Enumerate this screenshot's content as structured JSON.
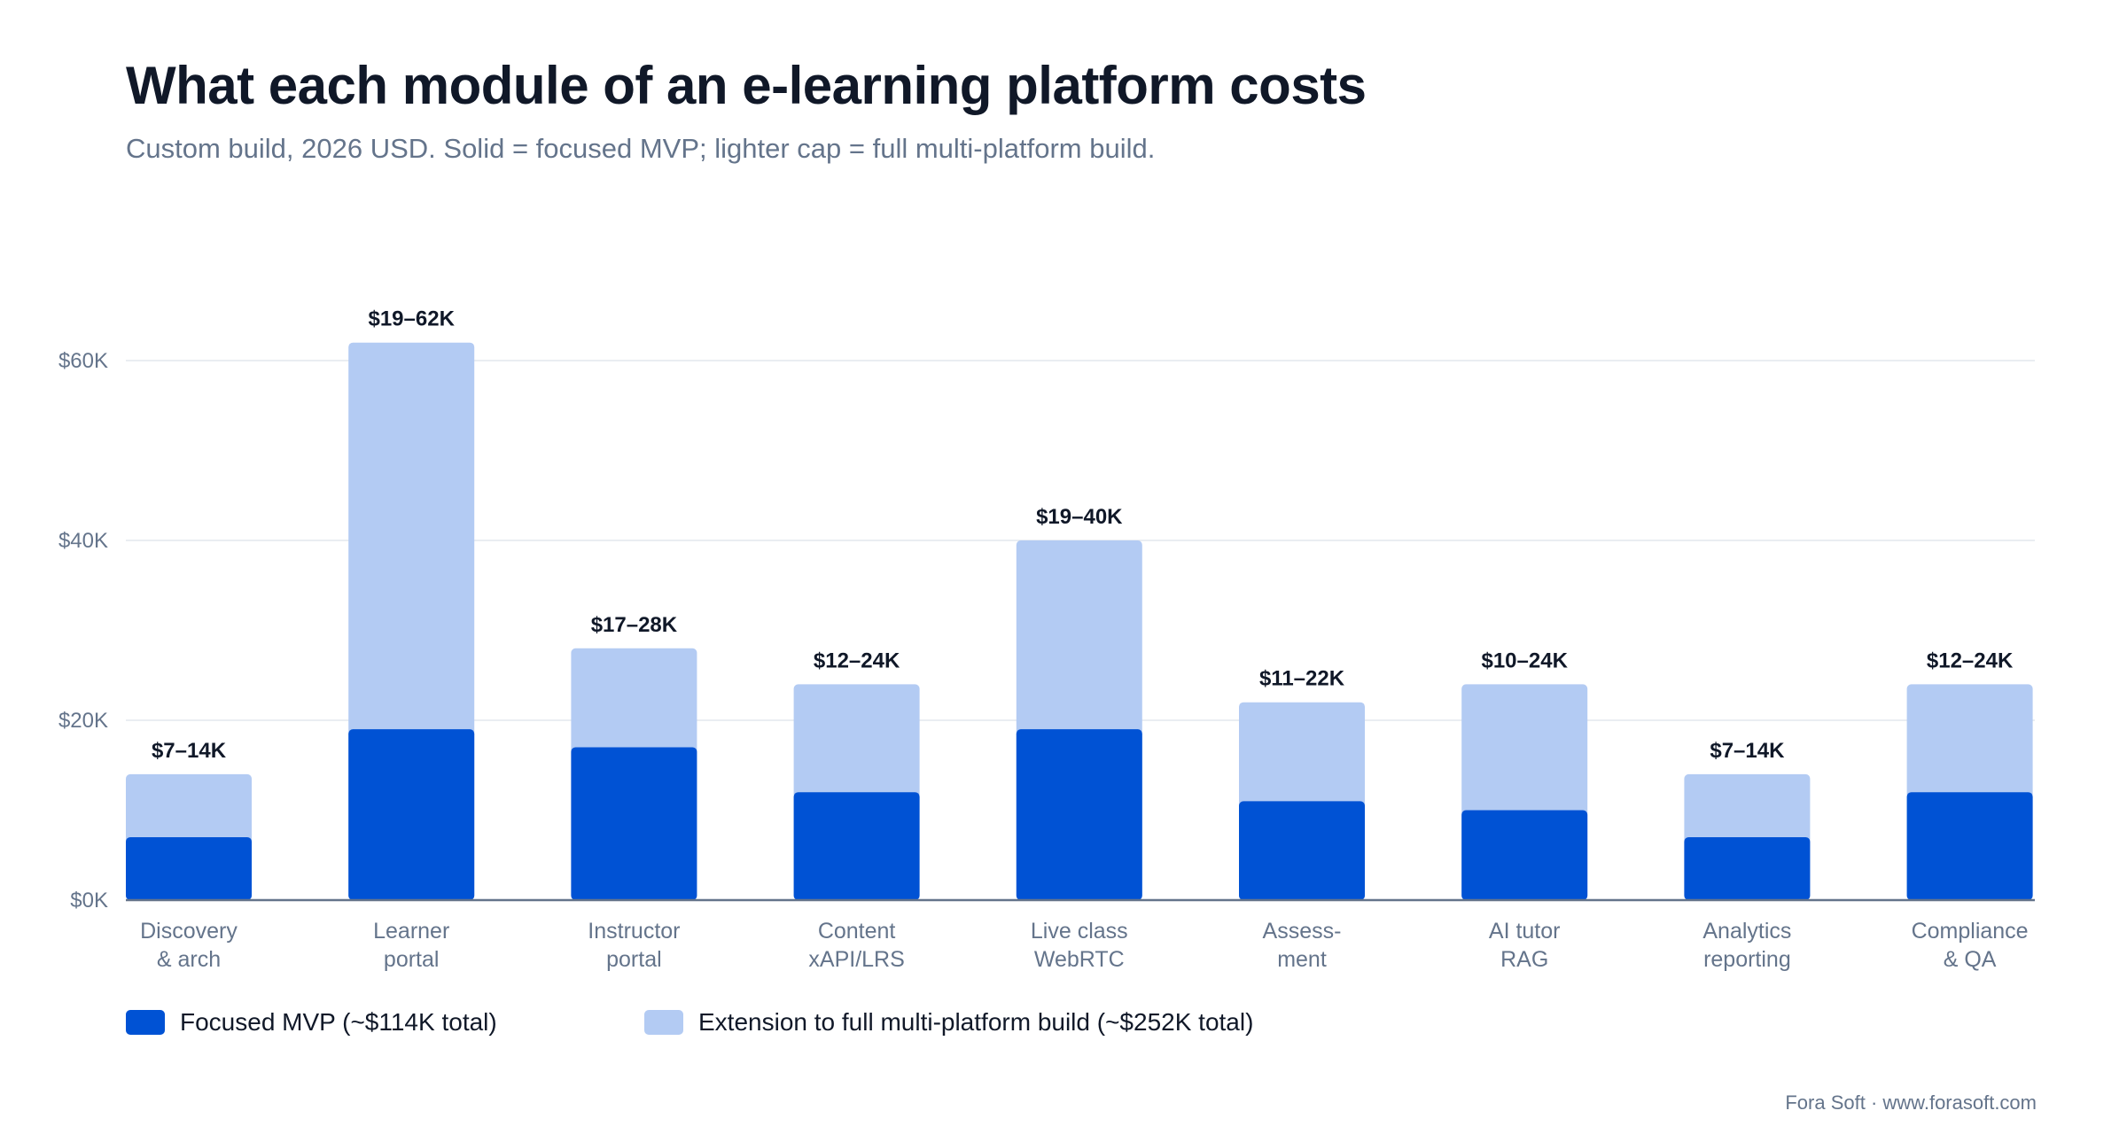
{
  "header": {
    "title": "What each module of an e-learning platform costs",
    "subtitle": "Custom build, 2026 USD. Solid = focused MVP; lighter cap = full multi-platform build."
  },
  "chart_data": {
    "type": "bar",
    "stacked": true,
    "categories": [
      [
        "Discovery",
        "& arch"
      ],
      [
        "Learner",
        "portal"
      ],
      [
        "Instructor",
        "portal"
      ],
      [
        "Content",
        "xAPI/LRS"
      ],
      [
        "Live class",
        "WebRTC"
      ],
      [
        "Assess-",
        "ment"
      ],
      [
        "AI tutor",
        "RAG"
      ],
      [
        "Analytics",
        "reporting"
      ],
      [
        "Compliance",
        "& QA"
      ]
    ],
    "series": [
      {
        "name": "Focused MVP (~$114K total)",
        "color": "#0052d4",
        "values": [
          7,
          19,
          17,
          12,
          19,
          11,
          10,
          7,
          12
        ]
      },
      {
        "name": "Extension to full multi-platform build (~$252K total)",
        "color": "#b3cbf3",
        "values": [
          7,
          43,
          11,
          12,
          21,
          11,
          14,
          7,
          12
        ]
      }
    ],
    "data_labels": [
      "$7–14K",
      "$19–62K",
      "$17–28K",
      "$12–24K",
      "$19–40K",
      "$11–22K",
      "$10–24K",
      "$7–14K",
      "$12–24K"
    ],
    "y_ticks": [
      0,
      20,
      40,
      60
    ],
    "y_tick_labels": [
      "$0K",
      "$20K",
      "$40K",
      "$60K"
    ],
    "ylim": [
      0,
      60
    ],
    "unit": "thousand USD",
    "grid": true,
    "legend_position": "bottom-left"
  },
  "legend": {
    "items": [
      {
        "label": "Focused MVP (~$114K total)",
        "color": "#0052d4"
      },
      {
        "label": "Extension to full multi-platform build (~$252K total)",
        "color": "#b3cbf3"
      }
    ]
  },
  "footer": {
    "credit": "Fora Soft · www.forasoft.com"
  }
}
